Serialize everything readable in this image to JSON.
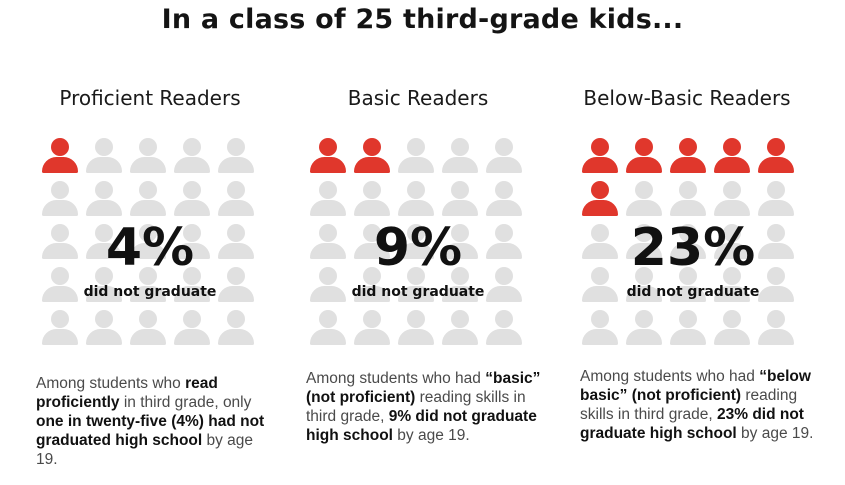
{
  "title": "In a class of 25 third-grade kids...",
  "colors": {
    "highlight": "#e0372c",
    "muted": "#e0e0e0"
  },
  "panels": [
    {
      "heading": "Proficient Readers",
      "total_icons": 25,
      "highlighted_icons": 1,
      "percent": "4%",
      "subtitle": "did not graduate",
      "desc": [
        {
          "t": "Among students who ",
          "b": false
        },
        {
          "t": "read proficiently",
          "b": true
        },
        {
          "t": " in third grade, only ",
          "b": false
        },
        {
          "t": "one in twenty-five (4%) had not graduated high school",
          "b": true
        },
        {
          "t": " by age 19.",
          "b": false
        }
      ]
    },
    {
      "heading": "Basic Readers",
      "total_icons": 25,
      "highlighted_icons": 2,
      "percent": "9%",
      "subtitle": "did not graduate",
      "desc": [
        {
          "t": "Among students who had ",
          "b": false
        },
        {
          "t": "“basic” (not proficient)",
          "b": true
        },
        {
          "t": " reading skills in third grade, ",
          "b": false
        },
        {
          "t": "9% did not graduate high school",
          "b": true
        },
        {
          "t": " by age 19.",
          "b": false
        }
      ]
    },
    {
      "heading": "Below-Basic Readers",
      "total_icons": 25,
      "highlighted_icons": 6,
      "percent": "23%",
      "subtitle": "did not graduate",
      "desc": [
        {
          "t": "Among students who had ",
          "b": false
        },
        {
          "t": "“below basic” (not proficient)",
          "b": true
        },
        {
          "t": " reading skills in third grade, ",
          "b": false
        },
        {
          "t": "23% did not graduate high school",
          "b": true
        },
        {
          "t": " by age 19.",
          "b": false
        }
      ]
    }
  ]
}
